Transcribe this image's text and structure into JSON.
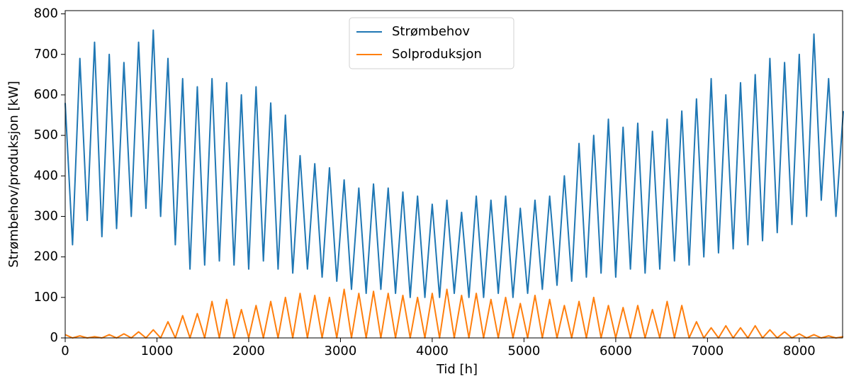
{
  "chart_data": {
    "type": "line",
    "xlabel": "Tid [h]",
    "ylabel": "Strømbehov/produksjon [kW]",
    "x": [
      0,
      80,
      160,
      240,
      320,
      400,
      480,
      560,
      640,
      720,
      800,
      880,
      960,
      1040,
      1120,
      1200,
      1280,
      1360,
      1440,
      1520,
      1600,
      1680,
      1760,
      1840,
      1920,
      2000,
      2080,
      2160,
      2240,
      2320,
      2400,
      2480,
      2560,
      2640,
      2720,
      2800,
      2880,
      2960,
      3040,
      3120,
      3200,
      3280,
      3360,
      3440,
      3520,
      3600,
      3680,
      3760,
      3840,
      3920,
      4000,
      4080,
      4160,
      4240,
      4320,
      4400,
      4480,
      4560,
      4640,
      4720,
      4800,
      4880,
      4960,
      5040,
      5120,
      5200,
      5280,
      5360,
      5440,
      5520,
      5600,
      5680,
      5760,
      5840,
      5920,
      6000,
      6080,
      6160,
      6240,
      6320,
      6400,
      6480,
      6560,
      6640,
      6720,
      6800,
      6880,
      6960,
      7040,
      7120,
      7200,
      7280,
      7360,
      7440,
      7520,
      7600,
      7680,
      7760,
      7840,
      7920,
      8000,
      8080,
      8160,
      8240,
      8320,
      8400,
      8480
    ],
    "series": [
      {
        "name": "Strømbehov",
        "color": "#1f77b4",
        "values": [
          580,
          230,
          690,
          290,
          730,
          250,
          700,
          270,
          680,
          300,
          730,
          320,
          760,
          300,
          690,
          230,
          640,
          170,
          620,
          180,
          640,
          190,
          630,
          180,
          600,
          170,
          620,
          190,
          580,
          170,
          550,
          160,
          450,
          170,
          430,
          150,
          420,
          140,
          390,
          120,
          370,
          110,
          380,
          120,
          370,
          110,
          360,
          100,
          350,
          100,
          330,
          100,
          340,
          110,
          310,
          100,
          350,
          100,
          340,
          110,
          350,
          100,
          320,
          110,
          340,
          120,
          350,
          130,
          400,
          140,
          480,
          150,
          500,
          160,
          540,
          150,
          520,
          170,
          530,
          160,
          510,
          170,
          540,
          190,
          560,
          180,
          590,
          200,
          640,
          210,
          600,
          220,
          630,
          230,
          650,
          240,
          690,
          260,
          680,
          280,
          700,
          300,
          750,
          340,
          640,
          300,
          560
        ]
      },
      {
        "name": "Solproduksjon",
        "color": "#ff7f0e",
        "values": [
          8,
          0,
          5,
          0,
          3,
          0,
          8,
          0,
          10,
          0,
          15,
          0,
          20,
          0,
          40,
          0,
          55,
          0,
          60,
          0,
          90,
          0,
          95,
          0,
          70,
          0,
          80,
          0,
          90,
          0,
          100,
          0,
          110,
          0,
          105,
          0,
          100,
          0,
          120,
          0,
          110,
          0,
          115,
          0,
          110,
          0,
          105,
          0,
          100,
          0,
          110,
          0,
          120,
          0,
          105,
          0,
          110,
          0,
          95,
          0,
          100,
          0,
          85,
          0,
          105,
          0,
          95,
          0,
          80,
          0,
          90,
          0,
          100,
          0,
          80,
          0,
          75,
          0,
          80,
          0,
          70,
          0,
          90,
          0,
          80,
          0,
          40,
          0,
          25,
          0,
          30,
          0,
          25,
          0,
          30,
          0,
          20,
          0,
          15,
          0,
          10,
          0,
          8,
          0,
          5,
          0,
          3
        ]
      }
    ],
    "xlim": [
      0,
      8480
    ],
    "xticks": [
      0,
      1000,
      2000,
      3000,
      4000,
      5000,
      6000,
      7000,
      8000
    ],
    "ylim": [
      0,
      808
    ],
    "yticks": [
      0,
      100,
      200,
      300,
      400,
      500,
      600,
      700,
      800
    ],
    "legend": "upper center"
  }
}
